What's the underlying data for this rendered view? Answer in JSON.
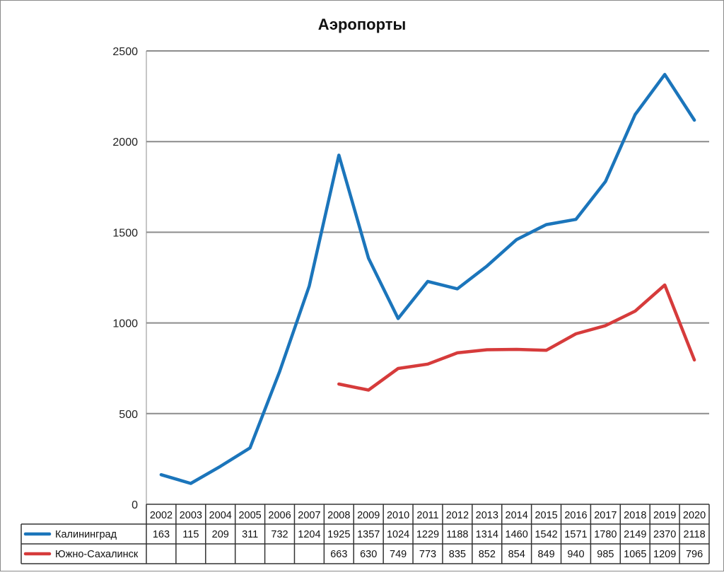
{
  "chart_data": {
    "type": "line",
    "title": "Аэропорты",
    "xlabel": "",
    "ylabel": "",
    "ylim": [
      0,
      2500
    ],
    "yticks": [
      "0",
      "500",
      "1000",
      "1500",
      "2000",
      "2500"
    ],
    "grid": true,
    "legend": "data-table",
    "categories": [
      "2002",
      "2003",
      "2004",
      "2005",
      "2006",
      "2007",
      "2008",
      "2009",
      "2010",
      "2011",
      "2012",
      "2013",
      "2014",
      "2015",
      "2016",
      "2017",
      "2018",
      "2019",
      "2020"
    ],
    "series": [
      {
        "name": "Калининград",
        "color": "#1b75bb",
        "values": [
          163,
          115,
          209,
          311,
          732,
          1204,
          1925,
          1357,
          1024,
          1229,
          1188,
          1314,
          1460,
          1542,
          1571,
          1780,
          2149,
          2370,
          2118
        ]
      },
      {
        "name": "Южно-Сахалинск",
        "color": "#d63b3b",
        "values": [
          null,
          null,
          null,
          null,
          null,
          null,
          663,
          630,
          749,
          773,
          835,
          852,
          854,
          849,
          940,
          985,
          1065,
          1209,
          796
        ]
      }
    ]
  }
}
